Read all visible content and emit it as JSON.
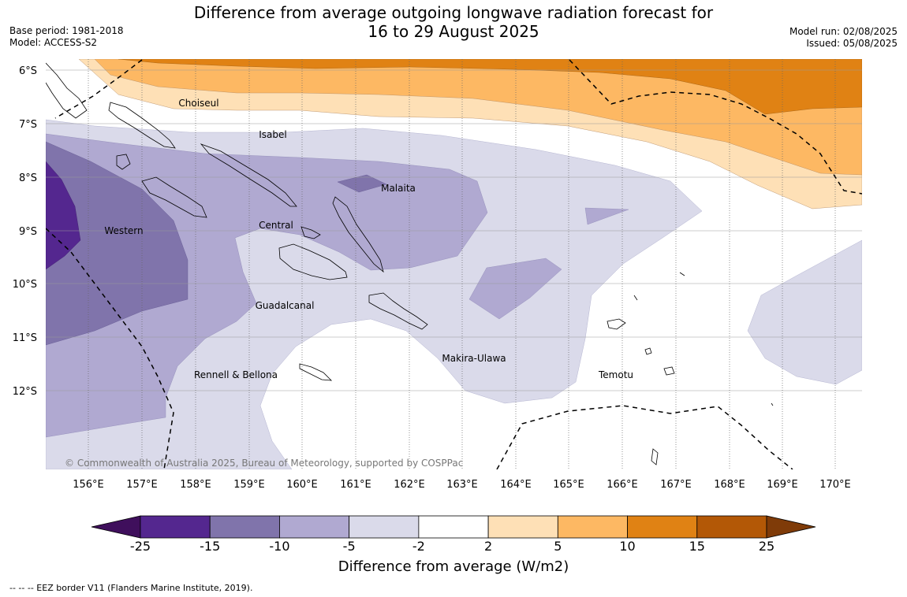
{
  "header": {
    "title_line1": "Difference from average outgoing longwave radiation forecast for",
    "title_line2": "16 to 29 August 2025",
    "base_period": "Base period: 1981-2018",
    "model": "Model: ACCESS-S2",
    "model_run": "Model run: 02/08/2025",
    "issued": "Issued: 05/08/2025"
  },
  "map": {
    "lat_labels": [
      "6°S",
      "7°S",
      "8°S",
      "9°S",
      "10°S",
      "11°S",
      "12°S"
    ],
    "lon_labels": [
      "156°E",
      "157°E",
      "158°E",
      "159°E",
      "160°E",
      "161°E",
      "162°E",
      "163°E",
      "164°E",
      "165°E",
      "166°E",
      "167°E",
      "168°E",
      "169°E",
      "170°E"
    ],
    "provinces": [
      "Choiseul",
      "Isabel",
      "Malaita",
      "Western",
      "Central",
      "Guadalcanal",
      "Makira-Ulawa",
      "Temotu",
      "Rennell & Bellona"
    ],
    "copyright": "© Commonwealth of Australia 2025, Bureau of Meteorology, supported by COSPPac"
  },
  "colorbar": {
    "ticks": [
      "-25",
      "-15",
      "-10",
      "-5",
      "-2",
      "2",
      "5",
      "10",
      "15",
      "25"
    ],
    "colors": [
      "#3f0f5c",
      "#54278f",
      "#8074ab",
      "#b0a9d1",
      "#dadaea",
      "#ffffff",
      "#fee0b6",
      "#fdb863",
      "#e08214",
      "#b35806",
      "#7f3b08"
    ],
    "label": "Difference from average (W/m2)"
  },
  "footer": {
    "eez_note": "--  --  -- EEZ border V11 (Flanders Marine Institute, 2019)."
  }
}
